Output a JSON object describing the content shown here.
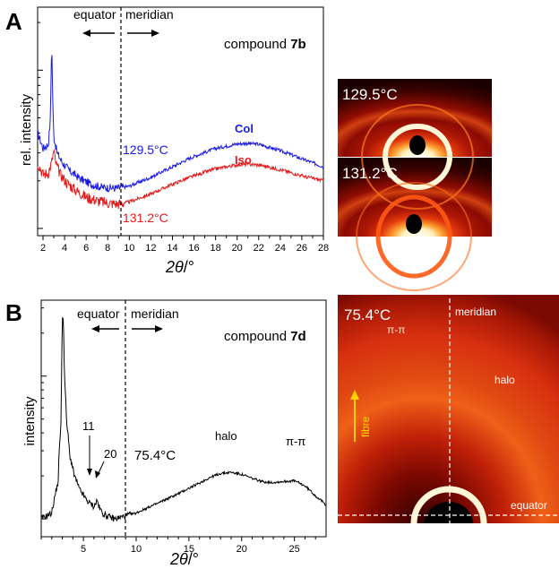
{
  "panels": [
    {
      "letter": "A",
      "compound_prefix": "compound ",
      "compound_bold": "7b",
      "region_left": "equator",
      "region_right": "meridian",
      "ylabel": "rel. intensity",
      "xlabel_theta": "2θ",
      "xlabel_unit": "/°",
      "temp_top": "129.5°C",
      "temp_bottom": "131.2°C",
      "phase_top": "Col",
      "phase_bottom": "Iso",
      "colors": {
        "top": "#1a1ae6",
        "bottom": "#e61a1a"
      }
    },
    {
      "letter": "B",
      "compound_prefix": "compound ",
      "compound_bold": "7d",
      "region_left": "equator",
      "region_right": "meridian",
      "ylabel": "intensity",
      "xlabel_theta": "2θ",
      "xlabel_unit": "/°",
      "temp": "75.4°C",
      "peak_11": "11",
      "peak_20": "20",
      "halo": "halo",
      "pipi": "π-π"
    }
  ],
  "images": {
    "a_top_label": "129.5°C",
    "a_bottom_label": "131.2°C",
    "b_label": "75.4°C",
    "b_pipi": "π-π",
    "b_meridian": "meridian",
    "b_halo": "halo",
    "b_fibre": "fibre",
    "b_equator": "equator"
  },
  "chart_data": [
    {
      "type": "line",
      "title": "compound 7b",
      "xlabel": "2θ/°",
      "ylabel": "rel. intensity",
      "xlim": [
        1.5,
        28
      ],
      "xticks": [
        2,
        4,
        6,
        8,
        10,
        12,
        14,
        16,
        18,
        20,
        22,
        24,
        26,
        28
      ],
      "yscale": "log",
      "series": [
        {
          "name": "Col",
          "label": "129.5°C",
          "x": [
            1.5,
            2.0,
            2.5,
            2.7,
            2.8,
            2.9,
            3.0,
            3.3,
            3.8,
            4.5,
            5.5,
            6.5,
            7.5,
            8.5,
            9.0,
            10,
            12,
            14,
            16,
            18,
            20,
            21,
            22,
            24,
            26,
            28
          ],
          "y": [
            4.0,
            3.2,
            3.4,
            5.0,
            14.5,
            6.0,
            3.8,
            3.0,
            2.6,
            2.3,
            2.05,
            1.9,
            1.82,
            1.8,
            1.8,
            1.85,
            2.1,
            2.45,
            2.85,
            3.2,
            3.42,
            3.45,
            3.4,
            3.1,
            2.75,
            2.45
          ]
        },
        {
          "name": "Iso",
          "label": "131.2°C",
          "x": [
            1.5,
            2.0,
            2.5,
            2.8,
            3.0,
            3.2,
            3.6,
            4.2,
            5.0,
            6.0,
            7.0,
            8.0,
            9.0,
            10,
            12,
            14,
            16,
            18,
            20,
            21,
            22,
            24,
            26,
            28
          ],
          "y": [
            2.6,
            2.2,
            2.25,
            2.6,
            3.1,
            2.55,
            2.2,
            1.95,
            1.75,
            1.58,
            1.5,
            1.45,
            1.43,
            1.47,
            1.65,
            1.9,
            2.15,
            2.38,
            2.52,
            2.55,
            2.52,
            2.35,
            2.15,
            2.0
          ]
        }
      ]
    },
    {
      "type": "line",
      "title": "compound 7d",
      "xlabel": "2θ/°",
      "ylabel": "intensity",
      "xlim": [
        1,
        28
      ],
      "xticks": [
        5,
        10,
        15,
        20,
        25
      ],
      "yscale": "log",
      "series": [
        {
          "name": "75.4°C",
          "x": [
            1.0,
            2.0,
            2.6,
            2.9,
            3.05,
            3.2,
            3.4,
            3.7,
            4.1,
            4.6,
            5.3,
            6.0,
            6.3,
            6.5,
            6.8,
            7.2,
            8.0,
            9.0,
            10,
            12,
            14,
            16,
            17,
            18,
            19,
            20,
            21,
            22,
            23,
            24,
            25,
            26,
            27,
            28
          ],
          "y": [
            1.0,
            1.1,
            1.8,
            5.0,
            30,
            10,
            4.8,
            2.8,
            2.05,
            1.62,
            1.35,
            1.22,
            1.35,
            1.2,
            1.1,
            1.05,
            1.0,
            1.05,
            1.1,
            1.28,
            1.5,
            1.78,
            1.95,
            2.08,
            2.12,
            2.05,
            1.92,
            1.82,
            1.8,
            1.83,
            1.85,
            1.7,
            1.45,
            1.25
          ]
        }
      ]
    }
  ]
}
